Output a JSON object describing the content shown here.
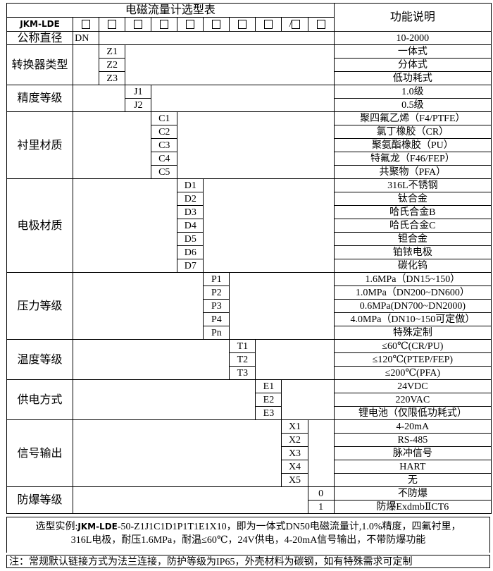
{
  "header": {
    "title": "电磁流量计选型表",
    "function_title": "功能说明",
    "model": "JKM-LDE",
    "slots": [
      "□",
      "□",
      "□",
      "□",
      "□",
      "□",
      "□",
      "□",
      "/□",
      "□"
    ]
  },
  "groups": [
    {
      "label": "公称直径",
      "col": 1,
      "items": [
        {
          "code": "DN",
          "desc": "10-2000"
        }
      ]
    },
    {
      "label": "转换器类型",
      "col": 2,
      "items": [
        {
          "code": "Z1",
          "desc": "一体式"
        },
        {
          "code": "Z2",
          "desc": "分体式"
        },
        {
          "code": "Z3",
          "desc": "低功耗式"
        }
      ]
    },
    {
      "label": "精度等级",
      "col": 3,
      "items": [
        {
          "code": "J1",
          "desc": "1.0级"
        },
        {
          "code": "J2",
          "desc": "0.5级"
        }
      ]
    },
    {
      "label": "衬里材质",
      "col": 4,
      "items": [
        {
          "code": "C1",
          "desc": "聚四氟乙烯（F4/PTFE）"
        },
        {
          "code": "C2",
          "desc": "氯丁橡胶（CR）"
        },
        {
          "code": "C3",
          "desc": "聚氨酯橡胶（PU）"
        },
        {
          "code": "C4",
          "desc": "特氟龙（F46/FEP）"
        },
        {
          "code": "C5",
          "desc": "共聚物（PFA）"
        }
      ]
    },
    {
      "label": "电极材质",
      "col": 5,
      "items": [
        {
          "code": "D1",
          "desc": "316L不锈钢"
        },
        {
          "code": "D2",
          "desc": "钛合金"
        },
        {
          "code": "D3",
          "desc": "哈氏合金B"
        },
        {
          "code": "D4",
          "desc": "哈氏合金C"
        },
        {
          "code": "D5",
          "desc": "钽合金"
        },
        {
          "code": "D6",
          "desc": "铂铱电极"
        },
        {
          "code": "D7",
          "desc": "碳化钨"
        }
      ]
    },
    {
      "label": "压力等级",
      "col": 6,
      "items": [
        {
          "code": "P1",
          "desc": "1.6MPa（DN15~150）"
        },
        {
          "code": "P2",
          "desc": "1.0MPa（DN200~DN600）"
        },
        {
          "code": "P3",
          "desc": "0.6MPa(DN700~DN2000)"
        },
        {
          "code": "P4",
          "desc": "4.0MPa（DN10~150可定做）"
        },
        {
          "code": "Pn",
          "desc": "特殊定制"
        }
      ]
    },
    {
      "label": "温度等级",
      "col": 7,
      "items": [
        {
          "code": "T1",
          "desc": "≤60℃(CR/PU)"
        },
        {
          "code": "T2",
          "desc": "≤120℃(PTEP/FEP)"
        },
        {
          "code": "T3",
          "desc": "≤200℃(PFA)"
        }
      ]
    },
    {
      "label": "供电方式",
      "col": 8,
      "items": [
        {
          "code": "E1",
          "desc": "24VDC"
        },
        {
          "code": "E2",
          "desc": "220VAC"
        },
        {
          "code": "E3",
          "desc": "锂电池（仅限低功耗式）"
        }
      ]
    },
    {
      "label": "信号输出",
      "col": 9,
      "items": [
        {
          "code": "X1",
          "desc": "4-20mA"
        },
        {
          "code": "X2",
          "desc": "RS-485"
        },
        {
          "code": "X3",
          "desc": "脉冲信号"
        },
        {
          "code": "X4",
          "desc": "HART"
        },
        {
          "code": "X5",
          "desc": "无"
        }
      ]
    },
    {
      "label": "防爆等级",
      "col": 10,
      "items": [
        {
          "code": "0",
          "desc": "不防爆"
        },
        {
          "code": "1",
          "desc": "防爆ExdmbⅡCT6"
        }
      ]
    }
  ],
  "footer": {
    "example_prefix": "选型实例:",
    "example_model": "JKM-LDE",
    "example_line1": "-50-Z1J1C1D1P1T1E1X10，即为一体式DN50电磁流量计,1.0%精度，四氟衬里，",
    "example_line2": "316L电极，耐压1.6MPa，耐温≤60℃，24V供电，4-20mA信号输出，不带防爆功能",
    "note": "注：常规默认链接方式为法兰连接，防护等级为IP65，外壳材料为碳钢，如有特殊需求可定制"
  }
}
